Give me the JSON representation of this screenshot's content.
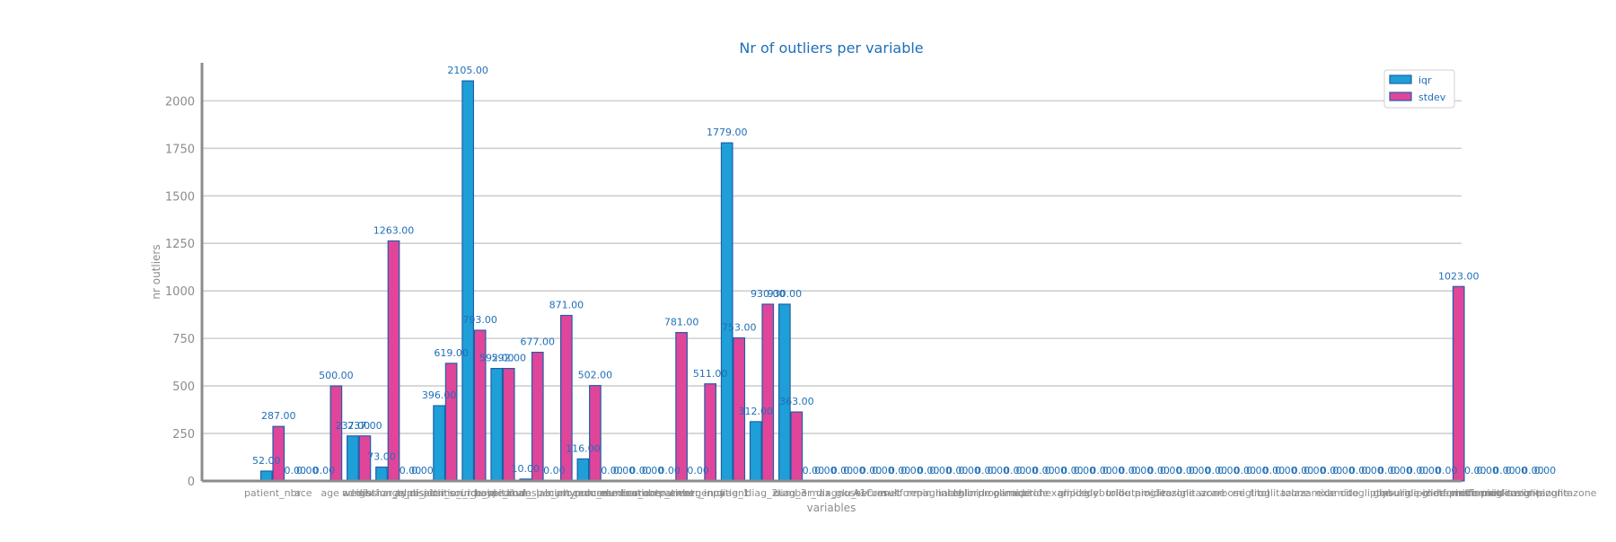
{
  "colors": {
    "iqr": "#1e9fd8",
    "stdev": "#e0459a",
    "edge": "#1f5fa8",
    "label": "#1f6fb8",
    "grid": "#cfcfcf",
    "axis": "#8c8c8c"
  },
  "chart_data": {
    "type": "bar",
    "title": "Nr of outliers per variable",
    "xlabel": "variables",
    "ylabel": "nr outliers",
    "ylim": [
      0,
      2200
    ],
    "yticks": [
      0,
      250,
      500,
      750,
      1000,
      1250,
      1500,
      1750,
      2000
    ],
    "grid": true,
    "legend_position": "top-right",
    "categories": [
      "patient_nbr",
      "race",
      "age",
      "weight",
      "admission_type_id",
      "discharge_disposition_id",
      "admission_source_id",
      "time_in_hospital",
      "payer_code",
      "medical_specialty",
      "num_lab_procedures",
      "num_procedures",
      "num_medications",
      "number_outpatient",
      "number_emergency",
      "number_inpatient",
      "diag_1",
      "diag_2",
      "diag_3",
      "number_diagnoses",
      "max_glu_serum",
      "A1Cresult",
      "metformin",
      "repaglinide",
      "nateglinide",
      "chlorpropamide",
      "glimepiride",
      "acetohexamide",
      "glipizide",
      "glyburide",
      "tolbutamide",
      "pioglitazone",
      "rosiglitazone",
      "acarbose",
      "miglitol",
      "troglitazone",
      "tolazamide",
      "examide",
      "citoglipton",
      "insulin",
      "glyburide-metformin",
      "glipizide-metformin",
      "glimepiride-pioglitazone",
      "metformin-rosiglitazone",
      "metformin-pioglitazone"
    ],
    "visible_tick_labels": [
      "patient_nbr",
      "race",
      "age",
      "weight",
      "admission_type_id",
      "discharge_disposition_id",
      "admission_source_id",
      "time_in_hospital",
      "payer_code",
      "medical_specialty",
      "num_lab_procedures",
      "num_procedures",
      "num_medications",
      "number_outpatient",
      "number_emergency",
      "number_inpatient",
      "diag_1",
      "diag_2",
      "diag_3",
      "number_diagnoses",
      "max_glu_serum",
      "A1Cresult",
      "metformin",
      "repaglinide",
      "nateglinide",
      "chlorpropamide",
      "glimepiride",
      "acetohexamide",
      "glipizide",
      "glyburide",
      "tolbutamide",
      "pioglitazone",
      "rosiglitazone",
      "acarbose",
      "miglitol",
      "troglitazone",
      "tolazamide",
      "examide",
      "citoglipton",
      "insulin",
      "glyburide-metformin",
      "glipizide-metformin",
      "glimepiride-pioglitazone",
      "metformin-rosiglitazone",
      "metformin-pioglitazone"
    ],
    "series": [
      {
        "name": "iqr",
        "values": [
          52,
          0,
          0,
          237,
          73,
          0,
          396,
          2105,
          592,
          10,
          0,
          116,
          0,
          0,
          0,
          0,
          1779,
          312,
          930,
          0,
          0,
          0,
          0,
          0,
          0,
          0,
          0,
          0,
          0,
          0,
          0,
          0,
          0,
          0,
          0,
          0,
          0,
          0,
          0,
          0,
          0,
          0,
          0,
          0,
          0
        ],
        "labels_shown": [
          true,
          true,
          true,
          true,
          true,
          true,
          true,
          true,
          true,
          true,
          true,
          true,
          true,
          true,
          true,
          true,
          true,
          true,
          true,
          true,
          true,
          true,
          true,
          true,
          true,
          true,
          true,
          true,
          true,
          true,
          true,
          true,
          true,
          true,
          true,
          true,
          true,
          true,
          true,
          true,
          true,
          true,
          true,
          true,
          true
        ]
      },
      {
        "name": "stdev",
        "values": [
          287,
          0,
          500,
          237,
          1263,
          0,
          619,
          793,
          592,
          677,
          871,
          502,
          0,
          0,
          781,
          511,
          753,
          930,
          363,
          0,
          0,
          0,
          0,
          0,
          0,
          0,
          0,
          0,
          0,
          0,
          0,
          0,
          0,
          0,
          0,
          0,
          0,
          0,
          0,
          0,
          0,
          1023,
          0,
          0,
          0
        ],
        "labels_shown": [
          true,
          true,
          true,
          true,
          true,
          true,
          true,
          true,
          true,
          true,
          true,
          true,
          true,
          true,
          true,
          true,
          true,
          true,
          true,
          true,
          true,
          true,
          true,
          true,
          true,
          true,
          true,
          true,
          true,
          true,
          true,
          true,
          true,
          true,
          true,
          true,
          true,
          true,
          true,
          true,
          true,
          true,
          true,
          true,
          true
        ]
      }
    ]
  }
}
